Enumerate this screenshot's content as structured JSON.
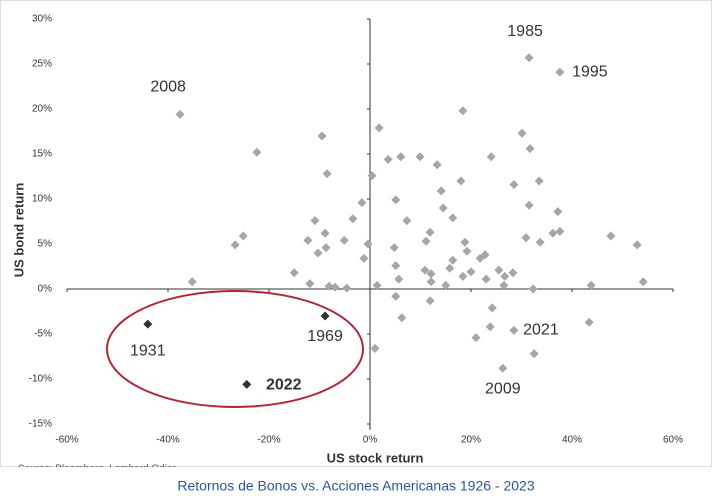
{
  "chart_data": {
    "type": "scatter",
    "x_label": "US stock return",
    "y_label": "US bond return",
    "source": "Source: Bloomberg, Lombard Odier",
    "caption": "Retornos de Bonos vs. Acciones Americanas 1926 - 2023",
    "xlim": [
      -60,
      60
    ],
    "ylim": [
      -15,
      30
    ],
    "xticks": [
      {
        "value": -60,
        "label": "-60%"
      },
      {
        "value": -40,
        "label": "-40%"
      },
      {
        "value": -20,
        "label": "-20%"
      },
      {
        "value": 0,
        "label": "0%"
      },
      {
        "value": 20,
        "label": "20%"
      },
      {
        "value": 40,
        "label": "40%"
      },
      {
        "value": 60,
        "label": "60%"
      }
    ],
    "yticks": [
      {
        "value": -15,
        "label": "-15%"
      },
      {
        "value": -10,
        "label": "-10%"
      },
      {
        "value": -5,
        "label": "-5%"
      },
      {
        "value": 0,
        "label": "0%"
      },
      {
        "value": 5,
        "label": "5%"
      },
      {
        "value": 10,
        "label": "10%"
      },
      {
        "value": 15,
        "label": "15%"
      },
      {
        "value": 20,
        "label": "20%"
      },
      {
        "value": 25,
        "label": "25%"
      },
      {
        "value": 30,
        "label": "30%"
      }
    ],
    "series": [
      {
        "color": "#a6a6a6",
        "labels": [
          "2008",
          "1985",
          "1995",
          "2021",
          "2009"
        ],
        "x": [
          -37.6,
          31.5,
          37.6,
          28.5,
          26.3,
          -22.4,
          -9.5,
          -8.5,
          1.8,
          0.4,
          3.6,
          6.1,
          9.9,
          13.3,
          18.4,
          18,
          14.1,
          24,
          30.1,
          31.7,
          28.5,
          33.5,
          31.5,
          37.2,
          37.6,
          36.2,
          33.7,
          30.9,
          47.7,
          52.9,
          54.1,
          43.8,
          43.4,
          32.3,
          32.5,
          23.8,
          24.2,
          21,
          -1.6,
          -3.4,
          -5.1,
          -10.9,
          -8.9,
          -12.3,
          -10.3,
          -8.7,
          -25.1,
          -26.7,
          -35.2,
          -15,
          -11.9,
          -8.1,
          -6.9,
          -4.6,
          -1.2,
          -0.4,
          1.4,
          1,
          5.1,
          7.3,
          11.1,
          11.9,
          14.5,
          16.4,
          4.8,
          5.1,
          5.7,
          5.1,
          6.3,
          10.9,
          12.1,
          12.1,
          11.9,
          15,
          15.8,
          16.4,
          18.8,
          19.2,
          18.4,
          20,
          21.8,
          22.8,
          23,
          25.5,
          26.7,
          28.3,
          26.5
        ],
        "y": [
          19.4,
          25.7,
          24.1,
          -4.6,
          -8.8,
          15.2,
          17,
          12.8,
          17.9,
          12.6,
          14.4,
          14.7,
          14.7,
          13.8,
          19.8,
          12,
          10.9,
          14.7,
          17.3,
          15.6,
          11.6,
          12,
          9.3,
          8.6,
          6.4,
          6.2,
          5.2,
          5.7,
          5.9,
          4.9,
          0.8,
          0.4,
          -3.7,
          0,
          -7.2,
          -4.2,
          -2.1,
          -5.4,
          9.6,
          7.8,
          5.4,
          7.6,
          6.2,
          5.4,
          4,
          4.6,
          5.9,
          4.9,
          0.8,
          1.8,
          0.6,
          0.3,
          0.2,
          0.1,
          3.4,
          5,
          0.4,
          -6.6,
          9.9,
          7.6,
          5.3,
          6.3,
          9,
          7.9,
          4.6,
          2.6,
          1.1,
          -0.8,
          -3.2,
          2.1,
          1.7,
          0.8,
          -1.3,
          0.4,
          2.3,
          3.2,
          5.2,
          4.2,
          1.4,
          1.9,
          3.4,
          3.8,
          1.1,
          2.1,
          1.4,
          1.8,
          0.4
        ]
      },
      {
        "color": "#333333",
        "labels": [
          "1931",
          "1969",
          "2022"
        ],
        "x": [
          -44,
          -8.9,
          -24.4
        ],
        "y": [
          -3.9,
          -3,
          -10.6
        ]
      }
    ]
  }
}
